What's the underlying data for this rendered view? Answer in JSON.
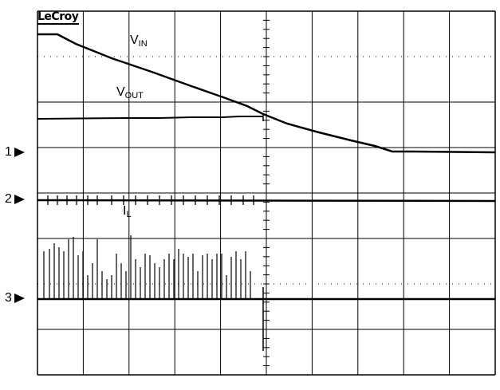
{
  "scope": {
    "brand": "LeCroy",
    "trace_labels": {
      "vin": {
        "main": "V",
        "sub": "IN"
      },
      "vout": {
        "main": "V",
        "sub": "OUT"
      },
      "il": {
        "main": "I",
        "sub": "L"
      }
    },
    "channel_markers": [
      {
        "number": "1"
      },
      {
        "number": "2"
      },
      {
        "number": "3"
      }
    ],
    "grid": {
      "divisions_x": 10,
      "divisions_y": 8,
      "on": true
    }
  }
}
